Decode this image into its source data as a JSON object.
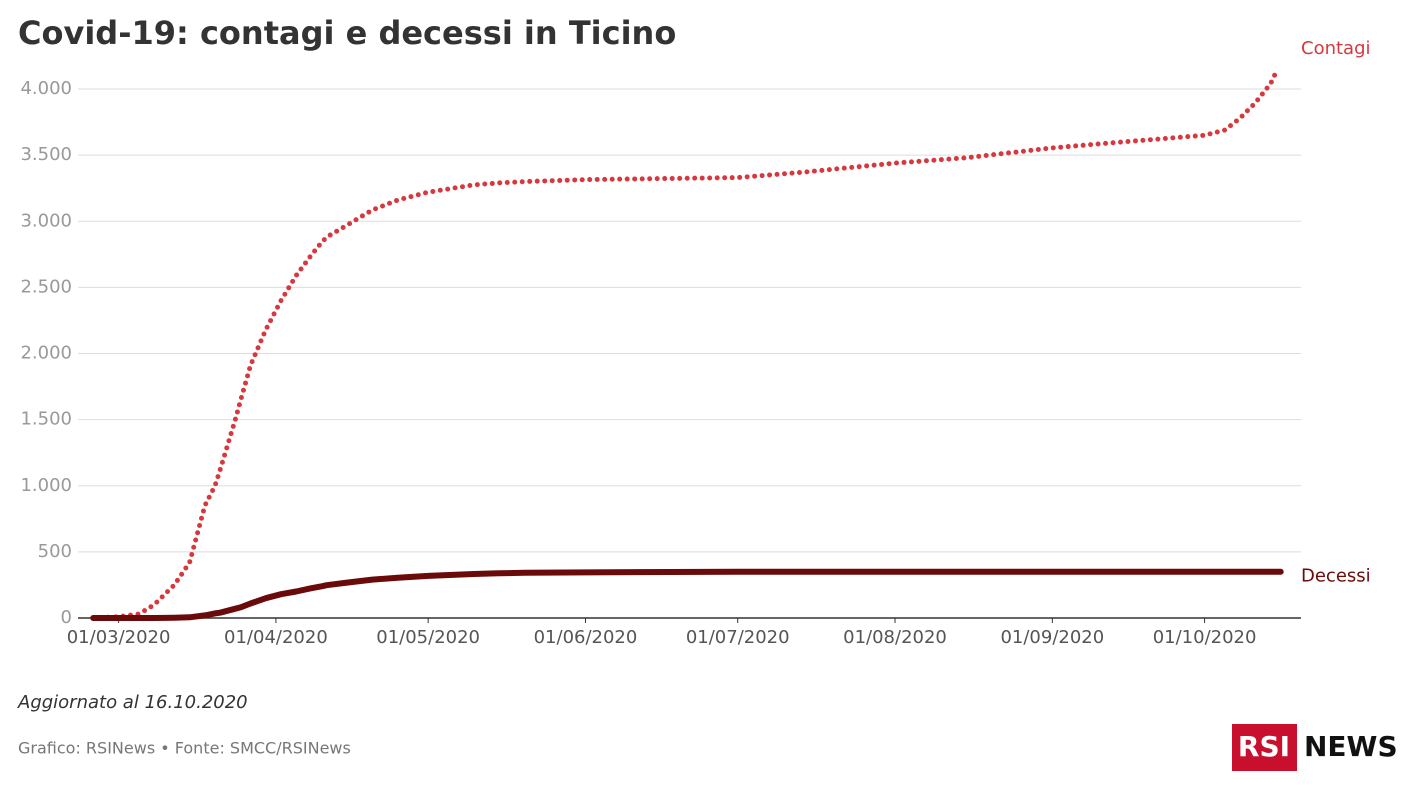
{
  "chart_data": {
    "type": "line",
    "title": "Covid-19: contagi e decessi in Ticino",
    "note": "Aggiornato al 16.10.2020",
    "source": "Grafico: RSINews • Fonte: SMCC/RSINews",
    "logo": {
      "left": "RSI",
      "right": "NEWS"
    },
    "x": [
      "25/02/2020",
      "01/03/2020",
      "05/03/2020",
      "08/03/2020",
      "12/03/2020",
      "15/03/2020",
      "18/03/2020",
      "20/03/2020",
      "21/03/2020",
      "24/03/2020",
      "25/03/2020",
      "27/03/2020",
      "30/03/2020",
      "02/04/2020",
      "05/04/2020",
      "08/04/2020",
      "10/04/2020",
      "11/04/2020",
      "15/04/2020",
      "20/04/2020",
      "25/04/2020",
      "01/05/2020",
      "10/05/2020",
      "15/05/2020",
      "20/05/2020",
      "01/06/2020",
      "01/07/2020",
      "15/07/2020",
      "01/08/2020",
      "15/08/2020",
      "01/09/2020",
      "15/09/2020",
      "01/10/2020",
      "05/10/2020",
      "08/10/2020",
      "11/10/2020",
      "14/10/2020",
      "15/10/2020",
      "16/10/2020"
    ],
    "series": [
      {
        "name": "Contagi",
        "color": "#d6383e",
        "style": "dotted",
        "values": [
          0,
          10,
          30,
          100,
          250,
          420,
          850,
          1000,
          1120,
          1500,
          1640,
          1910,
          2180,
          2400,
          2590,
          2745,
          2840,
          2880,
          2970,
          3085,
          3160,
          3220,
          3275,
          3290,
          3300,
          3315,
          3330,
          3375,
          3440,
          3480,
          3555,
          3600,
          3650,
          3690,
          3780,
          3895,
          4040,
          4120,
          null
        ]
      },
      {
        "name": "Decessi",
        "color": "#6b0a0a",
        "style": "solid",
        "values": [
          0,
          0,
          0,
          0,
          2,
          5,
          20,
          35,
          40,
          70,
          80,
          110,
          150,
          180,
          200,
          225,
          240,
          248,
          268,
          290,
          305,
          318,
          333,
          338,
          342,
          345,
          350,
          350,
          350,
          350,
          350,
          350,
          350,
          350,
          350,
          350,
          350,
          350,
          350
        ]
      }
    ],
    "xlim": [
      "22/02/2020",
      "20/10/2020"
    ],
    "xticks": [
      "01/03/2020",
      "01/04/2020",
      "01/05/2020",
      "01/06/2020",
      "01/07/2020",
      "01/08/2020",
      "01/09/2020",
      "01/10/2020"
    ],
    "ylim": [
      0,
      4000
    ],
    "yticks": [
      0,
      500,
      {
        "value": 1000,
        "label": "1.000"
      },
      {
        "value": 1500,
        "label": "1.500"
      },
      {
        "value": 2000,
        "label": "2.000"
      },
      {
        "value": 2500,
        "label": "2.500"
      },
      {
        "value": 3000,
        "label": "3.000"
      },
      {
        "value": 3500,
        "label": "3.500"
      },
      {
        "value": 4000,
        "label": "4.000"
      }
    ],
    "grid": true
  }
}
